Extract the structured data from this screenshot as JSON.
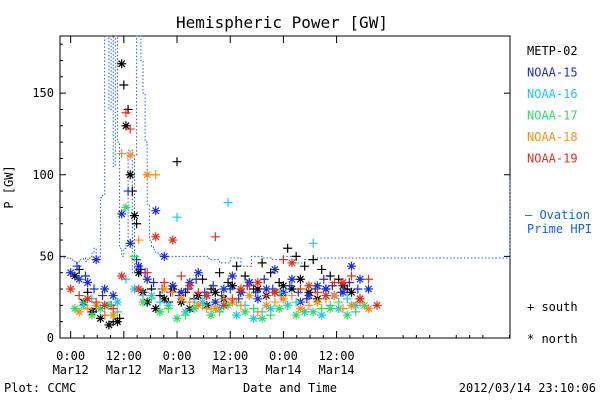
{
  "chart_data": {
    "type": "scatter",
    "title": "Hemispheric Power [GW]",
    "ylabel": "P [GW]",
    "xlabel": "Date and Time",
    "ylim": [
      0,
      185
    ],
    "xlim": [
      -0.05,
      2.065
    ],
    "yticks": [
      0,
      50,
      100,
      150
    ],
    "xticks": [
      {
        "x": 0.0,
        "time": "0:00",
        "date": "Mar12"
      },
      {
        "x": 0.25,
        "time": "12:00",
        "date": "Mar12"
      },
      {
        "x": 0.5,
        "time": "0:00",
        "date": "Mar13"
      },
      {
        "x": 0.75,
        "time": "12:00",
        "date": "Mar13"
      },
      {
        "x": 1.0,
        "time": "0:00",
        "date": "Mar14"
      },
      {
        "x": 1.25,
        "time": "12:00",
        "date": "Mar14"
      }
    ],
    "colors": {
      "METP-02": "#000000",
      "NOAA-15": "#1a2fd6",
      "NOAA-16": "#1ec8e6",
      "NOAA-17": "#39d66a",
      "NOAA-18": "#f2901e",
      "NOAA-19": "#e0321e",
      "ovation": "#1a5fd6"
    },
    "legend_satellites": [
      "METP-02",
      "NOAA-15",
      "NOAA-16",
      "NOAA-17",
      "NOAA-18",
      "NOAA-19"
    ],
    "ovation_label_line1": "— Ovation",
    "ovation_label_line2": "Prime HPI",
    "symbol_legend": {
      "south": "+ south",
      "north": "* north"
    },
    "footer_left": "Plot: CCMC",
    "footer_right": "2012/03/14 23:10:06",
    "ovation_hpi": {
      "x": [
        -0.05,
        0.0,
        0.01,
        0.02,
        0.03,
        0.04,
        0.05,
        0.06,
        0.07,
        0.08,
        0.09,
        0.1,
        0.11,
        0.12,
        0.13,
        0.14,
        0.15,
        0.16,
        0.17,
        0.18,
        0.19,
        0.2,
        0.21,
        0.22,
        0.23,
        0.24,
        0.25,
        0.26,
        0.27,
        0.28,
        0.29,
        0.3,
        0.31,
        0.32,
        0.33,
        0.34,
        0.35,
        0.36,
        0.37,
        0.38,
        0.39,
        0.4,
        0.41,
        0.42,
        0.43,
        0.44,
        0.45,
        0.46,
        0.47,
        0.48,
        0.49,
        0.5,
        0.55,
        0.6,
        0.65,
        0.7,
        0.75,
        0.8,
        0.85,
        0.9,
        0.95,
        1.0,
        1.05,
        1.1,
        1.15,
        1.2,
        1.25,
        1.3,
        1.35,
        1.4,
        1.45,
        1.5,
        1.55,
        1.6,
        1.65,
        1.7,
        1.75,
        1.8,
        1.85,
        1.9,
        1.95,
        2.0,
        2.05,
        2.065
      ],
      "y": [
        49,
        48,
        47,
        46,
        46,
        48,
        48,
        49,
        47,
        48,
        50,
        52,
        55,
        50,
        48,
        86,
        88,
        185,
        185,
        140,
        185,
        105,
        185,
        120,
        55,
        50,
        55,
        58,
        115,
        115,
        40,
        112,
        185,
        185,
        170,
        150,
        120,
        82,
        60,
        56,
        54,
        52,
        52,
        50,
        50,
        50,
        50,
        50,
        50,
        50,
        50,
        50,
        50,
        50,
        48,
        46,
        49,
        44,
        50,
        49,
        48,
        50,
        46,
        48,
        49,
        49,
        49,
        49,
        49,
        49,
        49,
        49,
        49,
        49,
        49,
        49,
        49,
        49,
        49,
        49,
        49,
        49,
        49,
        98
      ]
    },
    "series": [
      {
        "name": "METP-02",
        "marker": "*",
        "x": [
          0.02,
          0.06,
          0.1,
          0.14,
          0.18,
          0.22,
          0.24,
          0.26,
          0.28,
          0.3,
          0.32,
          0.34,
          0.36,
          0.4,
          0.44,
          0.48,
          0.52,
          0.56,
          0.6,
          0.64,
          0.68,
          0.72,
          0.76,
          0.8,
          0.84,
          0.88,
          0.92,
          0.96,
          1.0,
          1.04,
          1.08,
          1.12,
          1.16,
          1.2,
          1.24,
          1.28,
          1.32,
          1.36
        ],
        "y": [
          38,
          22,
          16,
          12,
          8,
          10,
          168,
          130,
          100,
          75,
          40,
          28,
          22,
          18,
          24,
          30,
          22,
          18,
          26,
          20,
          28,
          24,
          32,
          28,
          34,
          30,
          26,
          28,
          32,
          30,
          36,
          28,
          24,
          30,
          26,
          32,
          28,
          24
        ]
      },
      {
        "name": "METP-02",
        "marker": "+",
        "x": [
          0.04,
          0.08,
          0.12,
          0.16,
          0.2,
          0.23,
          0.25,
          0.27,
          0.29,
          0.31,
          0.33,
          0.38,
          0.42,
          0.46,
          0.5,
          0.54,
          0.58,
          0.62,
          0.66,
          0.7,
          0.74,
          0.78,
          0.82,
          0.86,
          0.9,
          0.94,
          0.98,
          1.02,
          1.06,
          1.1,
          1.14,
          1.18,
          1.22,
          1.26,
          1.3
        ],
        "y": [
          42,
          28,
          18,
          14,
          10,
          12,
          155,
          140,
          90,
          70,
          42,
          30,
          26,
          22,
          108,
          28,
          24,
          36,
          30,
          40,
          34,
          44,
          38,
          30,
          46,
          40,
          34,
          55,
          50,
          44,
          48,
          42,
          38,
          36,
          30
        ]
      },
      {
        "name": "NOAA-15",
        "marker": "*",
        "x": [
          0.0,
          0.04,
          0.08,
          0.12,
          0.16,
          0.2,
          0.24,
          0.28,
          0.32,
          0.36,
          0.4,
          0.44,
          0.48,
          0.52,
          0.56,
          0.6,
          0.64,
          0.68,
          0.72,
          0.76,
          0.8,
          0.84,
          0.88,
          0.92,
          0.96,
          1.0,
          1.04,
          1.08,
          1.12,
          1.16,
          1.2,
          1.24,
          1.28,
          1.32,
          1.36,
          1.4
        ],
        "y": [
          40,
          36,
          34,
          48,
          30,
          26,
          76,
          58,
          44,
          36,
          78,
          50,
          32,
          28,
          34,
          40,
          26,
          22,
          30,
          38,
          28,
          34,
          24,
          30,
          42,
          28,
          36,
          22,
          26,
          32,
          30,
          26,
          28,
          44,
          36,
          30
        ]
      },
      {
        "name": "NOAA-15",
        "marker": "+",
        "x": [
          0.03,
          0.07,
          0.11,
          0.15,
          0.19,
          0.27,
          0.31,
          0.35,
          0.39,
          0.43,
          0.47,
          0.51,
          0.55,
          0.59,
          0.63,
          0.67,
          0.71,
          0.75,
          0.79,
          0.83,
          0.87,
          0.91,
          0.95,
          0.99,
          1.03,
          1.07,
          1.11,
          1.15,
          1.19,
          1.23,
          1.27,
          1.31,
          1.35
        ],
        "y": [
          44,
          38,
          30,
          26,
          20,
          90,
          48,
          40,
          34,
          30,
          28,
          26,
          30,
          36,
          28,
          32,
          26,
          30,
          24,
          32,
          28,
          36,
          30,
          26,
          32,
          28,
          24,
          30,
          36,
          32,
          28,
          34,
          30
        ]
      },
      {
        "name": "NOAA-16",
        "marker": "*",
        "x": [
          0.06,
          0.14,
          0.22,
          0.3,
          0.38,
          0.46,
          0.54,
          0.62,
          0.7,
          0.78,
          0.86,
          0.94,
          1.02,
          1.1,
          1.18,
          1.26,
          1.34
        ],
        "y": [
          20,
          18,
          22,
          30,
          26,
          20,
          16,
          22,
          18,
          14,
          12,
          18,
          20,
          16,
          14,
          18,
          20
        ]
      },
      {
        "name": "NOAA-16",
        "marker": "+",
        "x": [
          0.1,
          0.18,
          0.26,
          0.34,
          0.42,
          0.5,
          0.58,
          0.66,
          0.74,
          0.82,
          0.9,
          0.98,
          1.06,
          1.14,
          1.22,
          1.3
        ],
        "y": [
          24,
          20,
          36,
          26,
          22,
          74,
          22,
          18,
          83,
          20,
          16,
          28,
          22,
          58,
          20,
          24
        ]
      },
      {
        "name": "NOAA-17",
        "marker": "*",
        "x": [
          0.02,
          0.1,
          0.18,
          0.26,
          0.34,
          0.42,
          0.5,
          0.58,
          0.66,
          0.74,
          0.82,
          0.9,
          0.98,
          1.06,
          1.14,
          1.22,
          1.3,
          1.38
        ],
        "y": [
          18,
          14,
          20,
          80,
          22,
          16,
          12,
          18,
          14,
          20,
          16,
          12,
          18,
          14,
          16,
          18,
          14,
          20
        ]
      },
      {
        "name": "NOAA-17",
        "marker": "+",
        "x": [
          0.06,
          0.14,
          0.22,
          0.3,
          0.38,
          0.46,
          0.54,
          0.62,
          0.7,
          0.78,
          0.86,
          0.94,
          1.02,
          1.1,
          1.18,
          1.26,
          1.34
        ],
        "y": [
          22,
          18,
          16,
          50,
          24,
          18,
          14,
          20,
          16,
          22,
          18,
          14,
          20,
          16,
          18,
          22,
          16
        ]
      },
      {
        "name": "NOAA-18",
        "marker": "*",
        "x": [
          0.04,
          0.12,
          0.2,
          0.28,
          0.36,
          0.44,
          0.52,
          0.6,
          0.68,
          0.76,
          0.84,
          0.92,
          1.0,
          1.08,
          1.16,
          1.24,
          1.32,
          1.4
        ],
        "y": [
          16,
          20,
          14,
          112,
          100,
          30,
          24,
          20,
          18,
          22,
          26,
          20,
          24,
          18,
          22,
          26,
          20,
          18
        ]
      },
      {
        "name": "NOAA-18",
        "marker": "+",
        "x": [
          0.08,
          0.16,
          0.24,
          0.32,
          0.4,
          0.48,
          0.56,
          0.64,
          0.72,
          0.8,
          0.88,
          0.96,
          1.04,
          1.12,
          1.2,
          1.28,
          1.36
        ],
        "y": [
          18,
          14,
          113,
          60,
          100,
          28,
          22,
          18,
          24,
          20,
          16,
          22,
          26,
          20,
          24,
          18,
          22
        ]
      },
      {
        "name": "NOAA-19",
        "marker": "*",
        "x": [
          0.0,
          0.08,
          0.16,
          0.24,
          0.32,
          0.4,
          0.48,
          0.56,
          0.64,
          0.72,
          0.8,
          0.88,
          0.96,
          1.04,
          1.12,
          1.2,
          1.28,
          1.36,
          1.44
        ],
        "y": [
          30,
          24,
          20,
          38,
          30,
          62,
          60,
          32,
          26,
          20,
          30,
          34,
          28,
          46,
          32,
          26,
          34,
          24,
          20
        ]
      },
      {
        "name": "NOAA-19",
        "marker": "+",
        "x": [
          0.04,
          0.12,
          0.2,
          0.26,
          0.28,
          0.36,
          0.44,
          0.52,
          0.6,
          0.68,
          0.76,
          0.84,
          0.92,
          1.0,
          1.08,
          1.16,
          1.24,
          1.32,
          1.4
        ],
        "y": [
          26,
          22,
          18,
          138,
          128,
          40,
          34,
          38,
          28,
          62,
          24,
          32,
          26,
          48,
          30,
          28,
          34,
          38,
          36
        ]
      }
    ]
  }
}
